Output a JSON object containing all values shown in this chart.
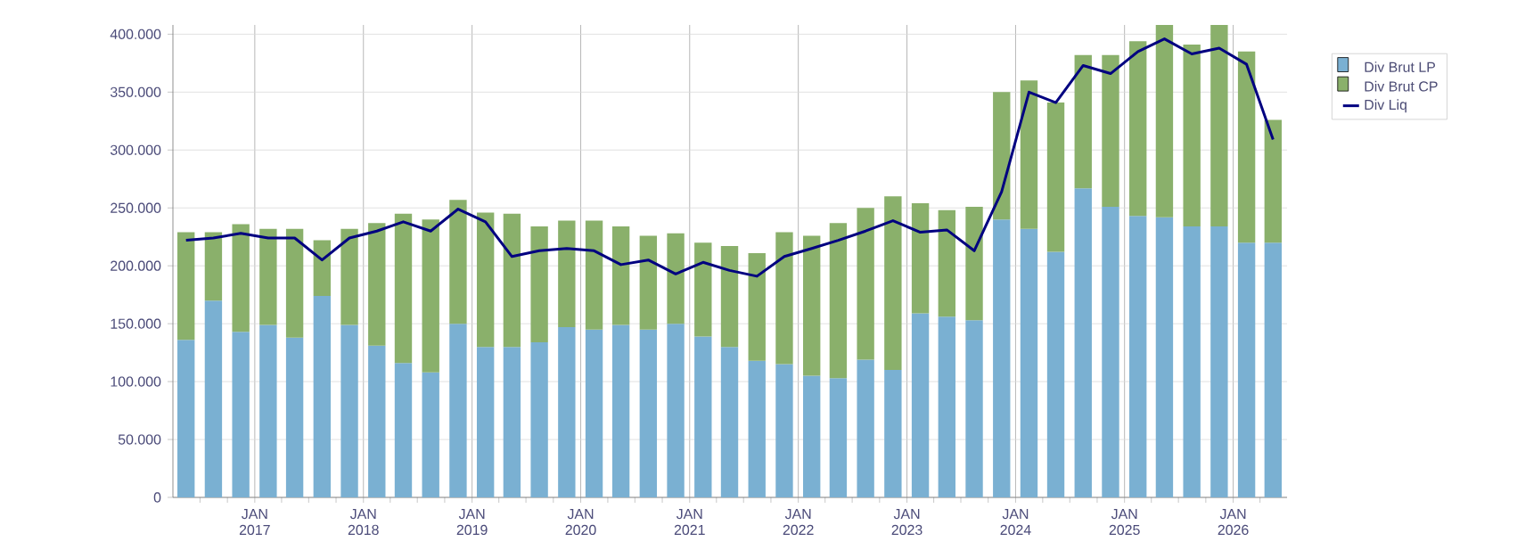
{
  "chart_data": {
    "type": "bar",
    "stacked": true,
    "x": [
      "2016-05-15",
      "2016-08-15",
      "2016-11-15",
      "2017-02-15",
      "2017-05-15",
      "2017-08-15",
      "2017-11-15",
      "2018-02-15",
      "2018-05-15",
      "2018-08-15",
      "2018-11-15",
      "2019-02-15",
      "2019-05-15",
      "2019-08-15",
      "2019-11-15",
      "2020-02-15",
      "2020-05-15",
      "2020-08-15",
      "2020-11-15",
      "2021-02-15",
      "2021-05-15",
      "2021-08-15",
      "2021-11-15",
      "2022-02-15",
      "2022-05-15",
      "2022-08-15",
      "2022-11-15",
      "2023-02-15",
      "2023-05-15",
      "2023-08-15",
      "2023-11-15",
      "2024-02-15",
      "2024-05-15",
      "2024-08-15",
      "2024-11-15",
      "2025-02-15",
      "2025-05-15",
      "2025-08-15",
      "2025-11-15",
      "2026-02-15",
      "2026-05-15"
    ],
    "series": [
      {
        "name": "Div Brut LP",
        "type": "bar",
        "color": "#7ab0d2",
        "values": [
          136000,
          170000,
          143000,
          149000,
          138000,
          174000,
          149000,
          131000,
          116000,
          108000,
          150000,
          130000,
          130000,
          134000,
          147000,
          145000,
          149000,
          145000,
          150000,
          139000,
          130000,
          118000,
          115000,
          105000,
          103000,
          119000,
          110000,
          159000,
          156000,
          153000,
          240000,
          232000,
          212000,
          267000,
          251000,
          243000,
          242000,
          234000,
          234000,
          220000,
          220000
        ]
      },
      {
        "name": "Div Brut CP",
        "type": "bar",
        "color": "#8ab06b",
        "values": [
          93000,
          59000,
          93000,
          83000,
          94000,
          48000,
          83000,
          106000,
          129000,
          132000,
          107000,
          116000,
          115000,
          100000,
          92000,
          94000,
          85000,
          81000,
          78000,
          81000,
          87000,
          93000,
          114000,
          121000,
          134000,
          131000,
          150000,
          95000,
          92000,
          98000,
          110000,
          128000,
          129000,
          115000,
          131000,
          151000,
          166000,
          157000,
          174000,
          165000,
          106000
        ]
      },
      {
        "name": "Div Liq",
        "type": "line",
        "color": "#000080",
        "values": [
          222000,
          224000,
          228000,
          224000,
          224000,
          205000,
          224000,
          230000,
          238000,
          230000,
          249000,
          238000,
          208000,
          213000,
          215000,
          213000,
          201000,
          205000,
          193000,
          203000,
          196000,
          191000,
          208000,
          215000,
          222000,
          230000,
          239000,
          229000,
          231000,
          213000,
          264000,
          350000,
          341000,
          373000,
          366000,
          385000,
          396000,
          383000,
          388000,
          374000,
          309000
        ]
      }
    ],
    "xlim": [
      "2016-04-01",
      "2026-07-01"
    ],
    "xticks": [
      {
        "value": "2016-07-01",
        "label": null
      },
      {
        "value": "2016-10-01",
        "label": null
      },
      {
        "value": "2017-01-01",
        "label": "JAN 2017"
      },
      {
        "value": "2017-04-01",
        "label": null
      },
      {
        "value": "2017-07-01",
        "label": null
      },
      {
        "value": "2017-10-01",
        "label": null
      },
      {
        "value": "2018-01-01",
        "label": "JAN 2018"
      },
      {
        "value": "2018-04-01",
        "label": null
      },
      {
        "value": "2018-07-01",
        "label": null
      },
      {
        "value": "2018-10-01",
        "label": null
      },
      {
        "value": "2019-01-01",
        "label": "JAN 2019"
      },
      {
        "value": "2019-04-01",
        "label": null
      },
      {
        "value": "2019-07-01",
        "label": null
      },
      {
        "value": "2019-10-01",
        "label": null
      },
      {
        "value": "2020-01-01",
        "label": "JAN 2020"
      },
      {
        "value": "2020-04-01",
        "label": null
      },
      {
        "value": "2020-07-01",
        "label": null
      },
      {
        "value": "2020-10-01",
        "label": null
      },
      {
        "value": "2021-01-01",
        "label": "JAN 2021"
      },
      {
        "value": "2021-04-01",
        "label": null
      },
      {
        "value": "2021-07-01",
        "label": null
      },
      {
        "value": "2021-10-01",
        "label": null
      },
      {
        "value": "2022-01-01",
        "label": "JAN 2022"
      },
      {
        "value": "2022-04-01",
        "label": null
      },
      {
        "value": "2022-07-01",
        "label": null
      },
      {
        "value": "2022-10-01",
        "label": null
      },
      {
        "value": "2023-01-01",
        "label": "JAN 2023"
      },
      {
        "value": "2023-04-01",
        "label": null
      },
      {
        "value": "2023-07-01",
        "label": null
      },
      {
        "value": "2023-10-01",
        "label": null
      },
      {
        "value": "2024-01-01",
        "label": "JAN 2024"
      },
      {
        "value": "2024-04-01",
        "label": null
      },
      {
        "value": "2024-07-01",
        "label": null
      },
      {
        "value": "2024-10-01",
        "label": null
      },
      {
        "value": "2025-01-01",
        "label": "JAN 2025"
      },
      {
        "value": "2025-04-01",
        "label": null
      },
      {
        "value": "2025-07-01",
        "label": null
      },
      {
        "value": "2025-10-01",
        "label": null
      },
      {
        "value": "2026-01-01",
        "label": "JAN 2026"
      },
      {
        "value": "2026-04-01",
        "label": null
      }
    ],
    "ylim": [
      0,
      408000
    ],
    "yticks": [
      0,
      {
        "value": 50000,
        "label": "50.000"
      },
      {
        "value": 100000,
        "label": "100.000"
      },
      {
        "value": 150000,
        "label": "150.000"
      },
      {
        "value": 200000,
        "label": "200.000"
      },
      {
        "value": 250000,
        "label": "250.000"
      },
      {
        "value": 300000,
        "label": "300.000"
      },
      {
        "value": 350000,
        "label": "350.000"
      },
      {
        "value": 400000,
        "label": "400.000"
      }
    ],
    "grid": true,
    "legend": "top right",
    "marker": "none"
  }
}
